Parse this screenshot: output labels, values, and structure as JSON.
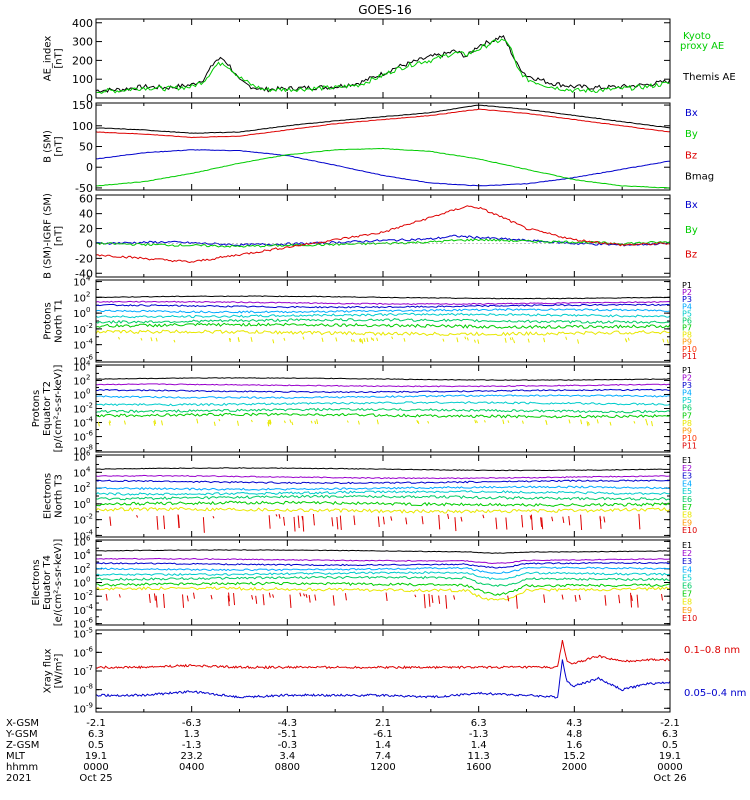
{
  "title": "GOES-16",
  "colors": {
    "black": "#000000",
    "red": "#dd0000",
    "green": "#00cc00",
    "blue": "#0000cc",
    "cyan": "#00cccc",
    "violet": "#9900cc",
    "yellow": "#e8e800",
    "orange": "#ff9900"
  },
  "chart_data": [
    {
      "type": "line",
      "ylabel": "AE_index\n[nT]",
      "yticks": [
        "400",
        "300",
        "200",
        "100",
        "0"
      ],
      "ylim": [
        0,
        420
      ],
      "legend": [
        {
          "label": "Kyoto\nproxy AE",
          "color": "#00cc00"
        },
        {
          "label": "Themis AE",
          "color": "#000000"
        }
      ],
      "series": [
        {
          "name": "Themis AE",
          "color": "#000000",
          "x": [
            0,
            1,
            2,
            3,
            4,
            4.5,
            5,
            5.3,
            5.6,
            6,
            6.5,
            7,
            8,
            9,
            10,
            11,
            12,
            12.5,
            13,
            13.5,
            14,
            14.5,
            15,
            15.5,
            16,
            16.5,
            17,
            17.3,
            17.6,
            18,
            19,
            20,
            21,
            22,
            23,
            24
          ],
          "y": [
            40,
            45,
            60,
            55,
            70,
            100,
            200,
            210,
            170,
            90,
            60,
            45,
            50,
            55,
            60,
            80,
            130,
            160,
            180,
            200,
            220,
            230,
            250,
            220,
            280,
            300,
            330,
            260,
            180,
            120,
            80,
            60,
            55,
            60,
            70,
            90
          ]
        },
        {
          "name": "Kyoto proxy AE",
          "color": "#00cc00",
          "x": [
            0,
            1,
            2,
            3,
            4,
            4.5,
            5,
            5.3,
            5.6,
            6,
            6.5,
            7,
            8,
            9,
            10,
            11,
            12,
            12.5,
            13,
            13.5,
            14,
            14.5,
            15,
            15.5,
            16,
            16.5,
            17,
            17.3,
            17.6,
            18,
            19,
            20,
            21,
            22,
            23,
            24
          ],
          "y": [
            35,
            40,
            55,
            50,
            60,
            90,
            170,
            190,
            160,
            110,
            70,
            45,
            45,
            50,
            55,
            70,
            120,
            150,
            170,
            190,
            200,
            220,
            240,
            230,
            260,
            290,
            310,
            280,
            160,
            100,
            60,
            40,
            40,
            50,
            60,
            80
          ]
        }
      ]
    },
    {
      "type": "line",
      "ylabel": "B (SM)\n[nT]",
      "yticks": [
        "150",
        "100",
        "50",
        "0",
        "-50"
      ],
      "ylim": [
        -55,
        155
      ],
      "legend": [
        {
          "label": "Bx",
          "color": "#0000cc"
        },
        {
          "label": "By",
          "color": "#00cc00"
        },
        {
          "label": "Bz",
          "color": "#dd0000"
        },
        {
          "label": "Bmag",
          "color": "#000000"
        }
      ],
      "series": [
        {
          "name": "Bx",
          "color": "#0000cc",
          "x": [
            0,
            2,
            4,
            6,
            8,
            10,
            12,
            14,
            16,
            18,
            20,
            22,
            24
          ],
          "y": [
            20,
            35,
            42,
            40,
            28,
            5,
            -20,
            -38,
            -45,
            -40,
            -25,
            -5,
            15
          ]
        },
        {
          "name": "By",
          "color": "#00cc00",
          "x": [
            0,
            2,
            4,
            6,
            8,
            10,
            12,
            14,
            16,
            18,
            20,
            22,
            24
          ],
          "y": [
            -45,
            -35,
            -15,
            10,
            30,
            42,
            45,
            38,
            20,
            -5,
            -30,
            -45,
            -50
          ]
        },
        {
          "name": "Bz",
          "color": "#dd0000",
          "x": [
            0,
            2,
            4,
            6,
            8,
            10,
            12,
            14,
            16,
            18,
            20,
            22,
            24
          ],
          "y": [
            85,
            80,
            72,
            75,
            90,
            105,
            115,
            125,
            140,
            130,
            115,
            100,
            85
          ]
        },
        {
          "name": "Bmag",
          "color": "#000000",
          "x": [
            0,
            2,
            4,
            6,
            8,
            10,
            12,
            14,
            16,
            18,
            20,
            22,
            24
          ],
          "y": [
            95,
            90,
            82,
            85,
            100,
            112,
            122,
            132,
            150,
            140,
            125,
            110,
            95
          ]
        }
      ]
    },
    {
      "type": "line",
      "ylabel": "B (SM)-IGRF (SM)\n[nT]",
      "yticks": [
        "60",
        "40",
        "20",
        "0",
        "-20",
        "-40"
      ],
      "ylim": [
        -45,
        65
      ],
      "legend": [
        {
          "label": "Bx",
          "color": "#0000cc"
        },
        {
          "label": "By",
          "color": "#00cc00"
        },
        {
          "label": "Bz",
          "color": "#dd0000"
        }
      ],
      "series": [
        {
          "name": "Bx",
          "color": "#0000cc",
          "x": [
            0,
            3,
            6,
            9,
            12,
            14,
            15,
            16,
            17,
            18,
            20,
            22,
            24
          ],
          "y": [
            0,
            2,
            -2,
            0,
            4,
            6,
            10,
            8,
            6,
            4,
            0,
            -2,
            0
          ]
        },
        {
          "name": "By",
          "color": "#00cc00",
          "x": [
            0,
            3,
            6,
            9,
            12,
            14,
            15,
            16,
            17,
            18,
            20,
            22,
            24
          ],
          "y": [
            0,
            -2,
            -4,
            -2,
            0,
            2,
            4,
            5,
            4,
            3,
            2,
            0,
            2
          ]
        },
        {
          "name": "Bz",
          "color": "#dd0000",
          "x": [
            0,
            2,
            4,
            5,
            6,
            8,
            10,
            12,
            13,
            14,
            15,
            15.5,
            16,
            17,
            18,
            20,
            22,
            24
          ],
          "y": [
            -15,
            -20,
            -25,
            -20,
            -15,
            -5,
            5,
            15,
            25,
            35,
            45,
            50,
            48,
            35,
            20,
            5,
            -2,
            0
          ]
        }
      ]
    },
    {
      "type": "line",
      "ylabel": "Protons\nNorth T1",
      "ytick_exps": [
        "4",
        "2",
        "0",
        "-2",
        "-4",
        "-6"
      ],
      "legend": [
        "P1",
        "P2",
        "P3",
        "P4",
        "P5",
        "P6",
        "P7",
        "P8",
        "P9",
        "P10",
        "P11"
      ],
      "legend_colors": [
        "#000000",
        "#9900cc",
        "#0000cc",
        "#00aaff",
        "#00cccc",
        "#00cc66",
        "#00cc00",
        "#e8e800",
        "#ff9900",
        "#ff3300",
        "#dd0000"
      ],
      "levels_log10": [
        2.0,
        1.3,
        0.9,
        0.3,
        -0.3,
        -1.0,
        -1.6,
        -2.5
      ]
    },
    {
      "type": "line",
      "ylabel": "Protons\nEquator T2\n[p/(cm²-s-sr-keV)]",
      "ytick_exps": [
        "4",
        "2",
        "0",
        "-2",
        "-4",
        "-6",
        "-8"
      ],
      "legend": [
        "P1",
        "P2",
        "P3",
        "P4",
        "P5",
        "P6",
        "P7",
        "P8",
        "P9",
        "P10",
        "P11"
      ],
      "legend_colors": [
        "#000000",
        "#9900cc",
        "#0000cc",
        "#00aaff",
        "#00cccc",
        "#00cc66",
        "#00cc00",
        "#e8e800",
        "#ff9900",
        "#ff3300",
        "#dd0000"
      ],
      "levels_log10": [
        2.2,
        1.3,
        0.5,
        -0.3,
        -1.3,
        -2.3,
        -3.0
      ]
    },
    {
      "type": "line",
      "ylabel": "Electrons\nNorth T3",
      "ytick_exps": [
        "6",
        "4",
        "2",
        "0",
        "-2",
        "-4"
      ],
      "legend": [
        "E1",
        "E2",
        "E3",
        "E4",
        "E5",
        "E6",
        "E7",
        "E8",
        "E9",
        "E10"
      ],
      "legend_colors": [
        "#000000",
        "#9900cc",
        "#0000cc",
        "#00aaff",
        "#00cccc",
        "#00cc66",
        "#00cc00",
        "#e8e800",
        "#ff9900",
        "#dd0000"
      ],
      "levels_log10": [
        4.4,
        3.4,
        2.8,
        2.0,
        1.4,
        0.8,
        0.0,
        -0.8
      ]
    },
    {
      "type": "line",
      "ylabel": "Electrons\nEquator T4\n[e/(cm²-s-sr-keV)]",
      "ytick_exps": [
        "6",
        "4",
        "2",
        "0",
        "-2",
        "-4",
        "-6"
      ],
      "legend": [
        "E1",
        "E2",
        "E3",
        "E4",
        "E5",
        "E6",
        "E7",
        "E8",
        "E9",
        "E10"
      ],
      "legend_colors": [
        "#000000",
        "#9900cc",
        "#0000cc",
        "#00aaff",
        "#00cccc",
        "#00cc66",
        "#00cc00",
        "#e8e800",
        "#ff9900",
        "#dd0000"
      ],
      "levels_log10": [
        4.6,
        3.3,
        2.7,
        2.0,
        1.3,
        0.6,
        -0.3,
        -1.0
      ]
    },
    {
      "type": "line",
      "ylabel": "Xray flux\n[W/m²]",
      "ytick_exps": [
        "-5",
        "-6",
        "-7",
        "-8",
        "-9"
      ],
      "legend": [
        {
          "label": "0.1–0.8 nm",
          "color": "#dd0000"
        },
        {
          "label": "0.05–0.4 nm",
          "color": "#0000cc"
        }
      ],
      "series": [
        {
          "name": "0.1–0.8 nm",
          "color": "#dd0000",
          "x": [
            0,
            2,
            4,
            6,
            8,
            10,
            12,
            14,
            16,
            18,
            19.3,
            19.5,
            19.7,
            20,
            21,
            22,
            23,
            24
          ],
          "y_log10": [
            -6.8,
            -6.8,
            -6.7,
            -6.8,
            -6.8,
            -6.8,
            -6.8,
            -6.8,
            -6.8,
            -6.8,
            -6.8,
            -5.4,
            -6.5,
            -6.6,
            -6.2,
            -6.5,
            -6.4,
            -6.4
          ]
        },
        {
          "name": "0.05–0.4 nm",
          "color": "#0000cc",
          "x": [
            0,
            2,
            4,
            6,
            8,
            10,
            12,
            14,
            16,
            18,
            19.3,
            19.5,
            19.7,
            20,
            21,
            22,
            23,
            24
          ],
          "y_log10": [
            -8.3,
            -8.3,
            -8.1,
            -8.4,
            -8.3,
            -8.3,
            -8.3,
            -8.4,
            -8.2,
            -8.3,
            -8.4,
            -6.4,
            -7.6,
            -7.8,
            -7.4,
            -8.0,
            -7.7,
            -7.6
          ]
        }
      ]
    }
  ],
  "ephemeris": {
    "row_labels": [
      "X-GSM",
      "Y-GSM",
      "Z-GSM",
      "MLT",
      "hhmm",
      "2021"
    ],
    "columns": [
      [
        "-2.1",
        "6.3",
        "0.5",
        "19.1",
        "0000",
        "Oct 25"
      ],
      [
        "-6.3",
        "1.3",
        "-1.3",
        "23.2",
        "0400",
        ""
      ],
      [
        "-4.3",
        "-5.1",
        "-0.3",
        "3.4",
        "0800",
        ""
      ],
      [
        "2.1",
        "-6.1",
        "1.4",
        "7.4",
        "1200",
        ""
      ],
      [
        "6.3",
        "-1.3",
        "1.4",
        "11.3",
        "1600",
        ""
      ],
      [
        "4.3",
        "4.8",
        "1.6",
        "15.2",
        "2000",
        ""
      ],
      [
        "-2.1",
        "6.3",
        "0.5",
        "19.1",
        "0000",
        "Oct 26"
      ]
    ]
  }
}
